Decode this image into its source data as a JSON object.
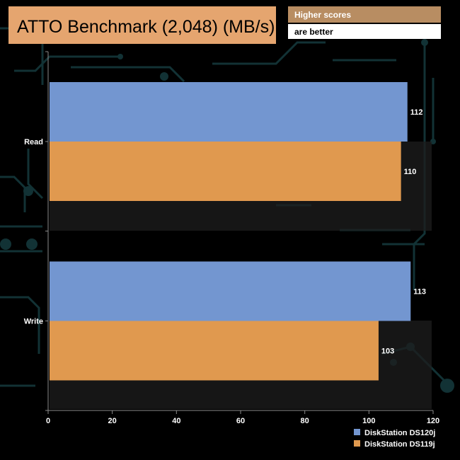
{
  "chart_data": {
    "type": "bar",
    "orientation": "horizontal",
    "title": "ATTO Benchmark (2,048) (MB/s)",
    "note_lines": [
      "Higher scores",
      "are better"
    ],
    "categories": [
      "Read",
      "Write"
    ],
    "series": [
      {
        "name": "DiskStation DS120j",
        "values": [
          112,
          113
        ],
        "color": "#7396D0"
      },
      {
        "name": "DiskStation DS119j",
        "values": [
          110,
          103
        ],
        "color": "#E0994F"
      }
    ],
    "xlim": [
      0,
      120
    ],
    "xticks": [
      0,
      20,
      40,
      60,
      80,
      100,
      120
    ],
    "grid": false,
    "legend_position": "bottom-right",
    "colors": {
      "background": "#000000",
      "title_box": "#E5A56F",
      "note_box_top": "#B88D62",
      "note_box_bottom": "#FFFFFF",
      "circuit": "#123235",
      "axis": "#8A8A8A",
      "text": "#FFFFFF"
    }
  }
}
